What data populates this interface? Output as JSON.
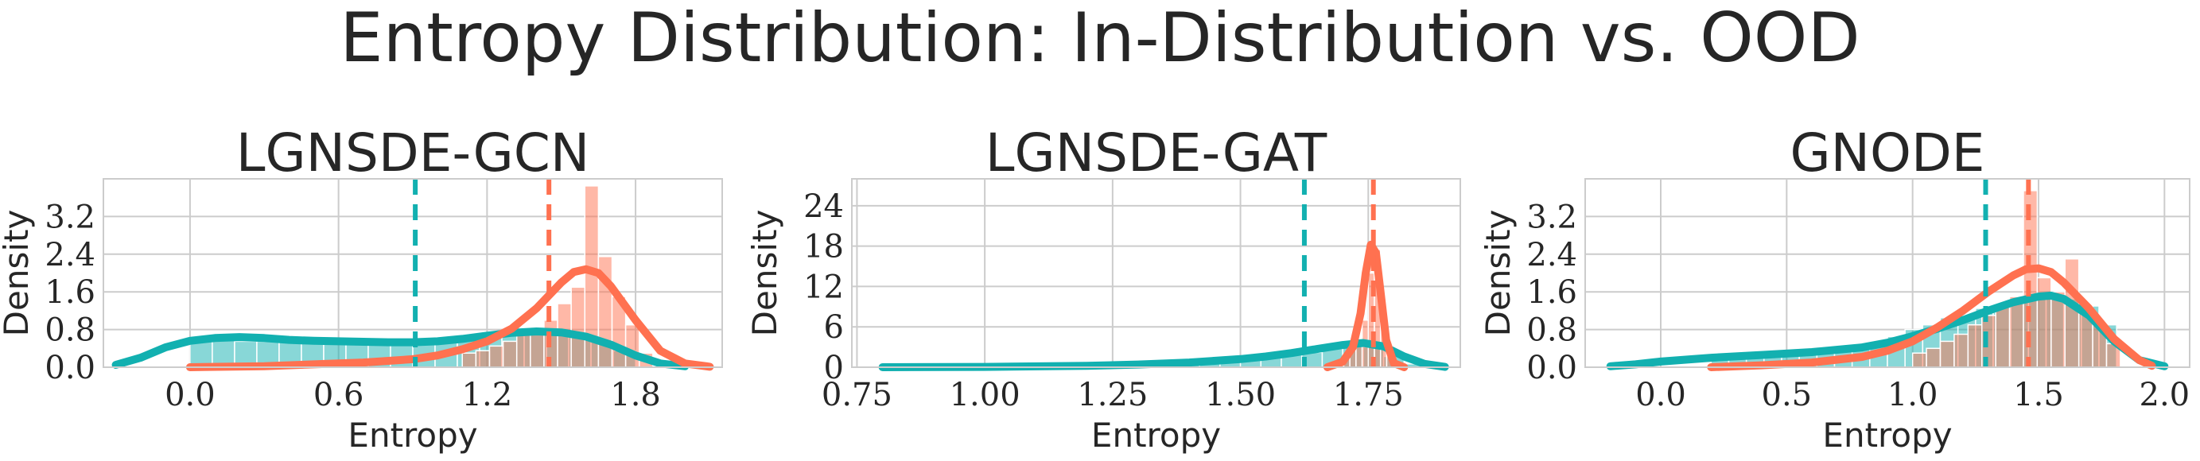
{
  "suptitle": "Entropy Distribution: In-Distribution vs. OOD",
  "colors": {
    "in_distribution": "#12b0b0",
    "ood": "#ff7150",
    "grid": "#cccccc",
    "axis_text": "#262626"
  },
  "chart_data": [
    {
      "type": "histogram+kde",
      "title": "LGNSDE-GCN",
      "xlabel": "Entropy",
      "ylabel": "Density",
      "xlim": [
        -0.35,
        2.15
      ],
      "ylim": [
        0,
        4.0
      ],
      "xticks": [
        0.0,
        0.6,
        1.2,
        1.8
      ],
      "xtick_labels": [
        "0.0",
        "0.6",
        "1.2",
        "1.8"
      ],
      "yticks": [
        0.0,
        0.8,
        1.6,
        2.4,
        3.2
      ],
      "ytick_labels": [
        "0.0",
        "0.8",
        "1.6",
        "2.4",
        "3.2"
      ],
      "grid": true,
      "vlines": [
        {
          "series": "in_distribution",
          "x": 0.91
        },
        {
          "series": "ood",
          "x": 1.45
        }
      ],
      "series": [
        {
          "key": "in_distribution",
          "bin_width": 0.09,
          "hist": [
            [
              0.0,
              0.6
            ],
            [
              0.09,
              0.6
            ],
            [
              0.18,
              0.55
            ],
            [
              0.27,
              0.55
            ],
            [
              0.36,
              0.55
            ],
            [
              0.45,
              0.55
            ],
            [
              0.54,
              0.5
            ],
            [
              0.63,
              0.5
            ],
            [
              0.72,
              0.5
            ],
            [
              0.81,
              0.5
            ],
            [
              0.9,
              0.5
            ],
            [
              0.99,
              0.55
            ],
            [
              1.08,
              0.6
            ],
            [
              1.17,
              0.65
            ],
            [
              1.26,
              0.7
            ],
            [
              1.35,
              0.75
            ],
            [
              1.44,
              0.75
            ],
            [
              1.53,
              0.65
            ],
            [
              1.62,
              0.55
            ],
            [
              1.71,
              0.35
            ]
          ],
          "kde": [
            [
              -0.3,
              0.05
            ],
            [
              -0.2,
              0.2
            ],
            [
              -0.1,
              0.42
            ],
            [
              0.0,
              0.56
            ],
            [
              0.1,
              0.62
            ],
            [
              0.2,
              0.64
            ],
            [
              0.3,
              0.62
            ],
            [
              0.4,
              0.58
            ],
            [
              0.5,
              0.56
            ],
            [
              0.6,
              0.55
            ],
            [
              0.7,
              0.54
            ],
            [
              0.8,
              0.53
            ],
            [
              0.9,
              0.53
            ],
            [
              1.0,
              0.55
            ],
            [
              1.1,
              0.6
            ],
            [
              1.2,
              0.67
            ],
            [
              1.3,
              0.73
            ],
            [
              1.4,
              0.76
            ],
            [
              1.5,
              0.74
            ],
            [
              1.6,
              0.65
            ],
            [
              1.7,
              0.48
            ],
            [
              1.8,
              0.25
            ],
            [
              1.9,
              0.08
            ],
            [
              2.0,
              0.02
            ]
          ]
        },
        {
          "key": "ood",
          "bin_width": 0.055,
          "hist": [
            [
              1.1,
              0.3
            ],
            [
              1.155,
              0.35
            ],
            [
              1.21,
              0.45
            ],
            [
              1.265,
              0.55
            ],
            [
              1.32,
              0.7
            ],
            [
              1.375,
              0.85
            ],
            [
              1.43,
              1.0
            ],
            [
              1.485,
              1.35
            ],
            [
              1.54,
              1.7
            ],
            [
              1.595,
              3.85
            ],
            [
              1.65,
              2.35
            ],
            [
              1.705,
              1.5
            ],
            [
              1.76,
              0.9
            ],
            [
              1.815,
              0.3
            ]
          ],
          "kde": [
            [
              0.0,
              0.0
            ],
            [
              0.3,
              0.02
            ],
            [
              0.5,
              0.06
            ],
            [
              0.7,
              0.1
            ],
            [
              0.9,
              0.17
            ],
            [
              1.0,
              0.25
            ],
            [
              1.1,
              0.38
            ],
            [
              1.2,
              0.55
            ],
            [
              1.3,
              0.82
            ],
            [
              1.4,
              1.25
            ],
            [
              1.5,
              1.8
            ],
            [
              1.55,
              2.02
            ],
            [
              1.6,
              2.08
            ],
            [
              1.65,
              2.0
            ],
            [
              1.7,
              1.72
            ],
            [
              1.8,
              1.0
            ],
            [
              1.9,
              0.35
            ],
            [
              2.0,
              0.08
            ],
            [
              2.1,
              0.01
            ]
          ]
        }
      ]
    },
    {
      "type": "histogram+kde",
      "title": "LGNSDE-GAT",
      "xlabel": "Entropy",
      "ylabel": "Density",
      "xlim": [
        0.74,
        1.93
      ],
      "ylim": [
        0,
        28.0
      ],
      "xticks": [
        0.75,
        1.0,
        1.25,
        1.5,
        1.75
      ],
      "xtick_labels": [
        "0.75",
        "1.00",
        "1.25",
        "1.50",
        "1.75"
      ],
      "yticks": [
        0,
        6,
        12,
        18,
        24
      ],
      "ytick_labels": [
        "0",
        "6",
        "12",
        "18",
        "24"
      ],
      "grid": true,
      "vlines": [
        {
          "series": "in_distribution",
          "x": 1.625
        },
        {
          "series": "ood",
          "x": 1.76
        }
      ],
      "series": [
        {
          "key": "in_distribution",
          "bin_width": 0.04,
          "hist": [
            [
              1.3,
              0.3
            ],
            [
              1.34,
              0.4
            ],
            [
              1.38,
              0.5
            ],
            [
              1.42,
              0.6
            ],
            [
              1.46,
              0.8
            ],
            [
              1.5,
              1.1
            ],
            [
              1.54,
              1.4
            ],
            [
              1.58,
              1.8
            ],
            [
              1.62,
              2.2
            ],
            [
              1.66,
              2.8
            ],
            [
              1.7,
              3.3
            ],
            [
              1.74,
              3.0
            ],
            [
              1.78,
              1.6
            ],
            [
              1.82,
              0.5
            ]
          ],
          "kde": [
            [
              0.8,
              0.0
            ],
            [
              1.0,
              0.05
            ],
            [
              1.2,
              0.2
            ],
            [
              1.3,
              0.4
            ],
            [
              1.4,
              0.7
            ],
            [
              1.5,
              1.2
            ],
            [
              1.55,
              1.6
            ],
            [
              1.6,
              2.1
            ],
            [
              1.65,
              2.7
            ],
            [
              1.7,
              3.3
            ],
            [
              1.74,
              3.6
            ],
            [
              1.78,
              3.1
            ],
            [
              1.82,
              1.6
            ],
            [
              1.86,
              0.5
            ],
            [
              1.9,
              0.05
            ]
          ]
        },
        {
          "key": "ood",
          "bin_width": 0.012,
          "hist": [
            [
              1.69,
              0.5
            ],
            [
              1.702,
              1.5
            ],
            [
              1.714,
              2.5
            ],
            [
              1.726,
              4.0
            ],
            [
              1.738,
              7.0
            ],
            [
              1.75,
              14.0
            ],
            [
              1.762,
              17.5
            ],
            [
              1.774,
              8.0
            ],
            [
              1.786,
              2.0
            ]
          ],
          "kde": [
            [
              1.67,
              0.0
            ],
            [
              1.7,
              0.8
            ],
            [
              1.72,
              3.0
            ],
            [
              1.735,
              8.0
            ],
            [
              1.745,
              14.0
            ],
            [
              1.755,
              18.2
            ],
            [
              1.765,
              17.0
            ],
            [
              1.775,
              10.5
            ],
            [
              1.785,
              4.0
            ],
            [
              1.8,
              0.6
            ],
            [
              1.82,
              0.0
            ]
          ]
        }
      ]
    },
    {
      "type": "histogram+kde",
      "title": "GNODE",
      "xlabel": "Entropy",
      "ylabel": "Density",
      "xlim": [
        -0.3,
        2.1
      ],
      "ylim": [
        0,
        4.0
      ],
      "xticks": [
        0.0,
        0.5,
        1.0,
        1.5,
        2.0
      ],
      "xtick_labels": [
        "0.0",
        "0.5",
        "1.0",
        "1.5",
        "2.0"
      ],
      "yticks": [
        0.0,
        0.8,
        1.6,
        2.4,
        3.2
      ],
      "ytick_labels": [
        "0.0",
        "0.8",
        "1.6",
        "2.4",
        "3.2"
      ],
      "grid": true,
      "vlines": [
        {
          "series": "in_distribution",
          "x": 1.29
        },
        {
          "series": "ood",
          "x": 1.46
        }
      ],
      "series": [
        {
          "key": "in_distribution",
          "bin_width": 0.07,
          "hist": [
            [
              0.2,
              0.15
            ],
            [
              0.27,
              0.2
            ],
            [
              0.34,
              0.25
            ],
            [
              0.41,
              0.25
            ],
            [
              0.48,
              0.3
            ],
            [
              0.55,
              0.3
            ],
            [
              0.62,
              0.35
            ],
            [
              0.69,
              0.4
            ],
            [
              0.76,
              0.45
            ],
            [
              0.83,
              0.55
            ],
            [
              0.9,
              0.65
            ],
            [
              0.97,
              0.8
            ],
            [
              1.04,
              0.9
            ],
            [
              1.11,
              1.05
            ],
            [
              1.18,
              1.1
            ],
            [
              1.25,
              1.25
            ],
            [
              1.32,
              1.3
            ],
            [
              1.39,
              1.4
            ],
            [
              1.46,
              1.45
            ],
            [
              1.53,
              1.5
            ],
            [
              1.6,
              1.45
            ],
            [
              1.67,
              1.3
            ],
            [
              1.74,
              0.9
            ]
          ],
          "kde": [
            [
              -0.2,
              0.02
            ],
            [
              -0.1,
              0.06
            ],
            [
              0.0,
              0.12
            ],
            [
              0.2,
              0.2
            ],
            [
              0.4,
              0.26
            ],
            [
              0.6,
              0.32
            ],
            [
              0.8,
              0.42
            ],
            [
              0.9,
              0.52
            ],
            [
              1.0,
              0.66
            ],
            [
              1.1,
              0.82
            ],
            [
              1.2,
              1.0
            ],
            [
              1.3,
              1.2
            ],
            [
              1.4,
              1.38
            ],
            [
              1.5,
              1.5
            ],
            [
              1.55,
              1.52
            ],
            [
              1.6,
              1.45
            ],
            [
              1.7,
              1.1
            ],
            [
              1.8,
              0.55
            ],
            [
              1.9,
              0.15
            ],
            [
              2.0,
              0.02
            ]
          ]
        },
        {
          "key": "ood",
          "bin_width": 0.055,
          "hist": [
            [
              1.0,
              0.3
            ],
            [
              1.055,
              0.4
            ],
            [
              1.11,
              0.55
            ],
            [
              1.165,
              0.7
            ],
            [
              1.22,
              0.9
            ],
            [
              1.275,
              1.1
            ],
            [
              1.33,
              1.3
            ],
            [
              1.385,
              1.5
            ],
            [
              1.44,
              3.75
            ],
            [
              1.495,
              1.9
            ],
            [
              1.55,
              1.6
            ],
            [
              1.605,
              2.3
            ],
            [
              1.66,
              1.3
            ],
            [
              1.715,
              0.9
            ],
            [
              1.77,
              0.5
            ]
          ],
          "kde": [
            [
              0.2,
              0.0
            ],
            [
              0.4,
              0.04
            ],
            [
              0.6,
              0.1
            ],
            [
              0.8,
              0.22
            ],
            [
              0.9,
              0.35
            ],
            [
              1.0,
              0.55
            ],
            [
              1.1,
              0.85
            ],
            [
              1.2,
              1.2
            ],
            [
              1.3,
              1.6
            ],
            [
              1.4,
              1.95
            ],
            [
              1.45,
              2.08
            ],
            [
              1.5,
              2.1
            ],
            [
              1.55,
              2.02
            ],
            [
              1.6,
              1.8
            ],
            [
              1.7,
              1.25
            ],
            [
              1.8,
              0.6
            ],
            [
              1.9,
              0.15
            ],
            [
              1.95,
              0.03
            ]
          ]
        }
      ]
    }
  ]
}
